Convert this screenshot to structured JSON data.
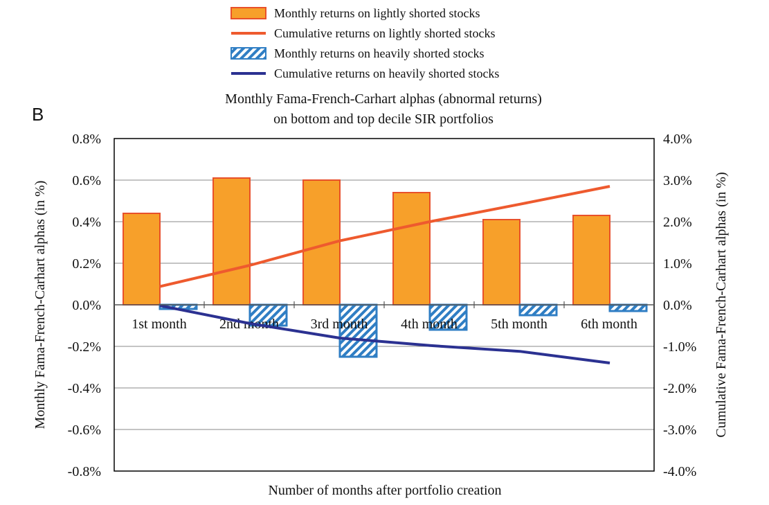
{
  "panel_label": "B",
  "chart_data": {
    "type": "bar",
    "title_lines": [
      "Monthly Fama-French-Carhart alphas (abnormal returns)",
      "on bottom and top decile SIR portfolios"
    ],
    "xlabel": "Number of months after portfolio creation",
    "ylabel_left": "Monthly  Fama-French-Carhart alphas (in %)",
    "ylabel_right": "Cumulative  Fama-French-Carhart alphas (in %)",
    "categories": [
      "1st month",
      "2nd month",
      "3rd month",
      "4th month",
      "5th month",
      "6th month"
    ],
    "ylim_left": [
      -0.8,
      0.8
    ],
    "ylim_right": [
      -4.0,
      4.0
    ],
    "yticks_left": [
      "0.8%",
      "0.6%",
      "0.4%",
      "0.2%",
      "0.0%",
      "-0.2%",
      "-0.4%",
      "-0.6%",
      "-0.8%"
    ],
    "yticks_right": [
      "4.0%",
      "3.0%",
      "2.0%",
      "1.0%",
      "0.0%",
      "-1.0%",
      "-2.0%",
      "-3.0%",
      "-4.0%"
    ],
    "grid": true,
    "legend_position": "top",
    "series": [
      {
        "name": "Monthly returns on lightly shorted stocks",
        "kind": "bar",
        "axis": "left",
        "style": "solid",
        "color": "#F7A02A",
        "edge": "#E8502A",
        "values": [
          0.44,
          0.61,
          0.6,
          0.54,
          0.41,
          0.43
        ]
      },
      {
        "name": "Cumulative returns on lightly shorted stocks",
        "kind": "line",
        "axis": "right",
        "color": "#EE5A2E",
        "values": [
          0.44,
          0.95,
          1.54,
          2.0,
          2.42,
          2.85
        ]
      },
      {
        "name": "Monthly returns on heavily shorted stocks",
        "kind": "bar",
        "axis": "left",
        "style": "hatched",
        "color": "#2F7EC4",
        "values": [
          -0.02,
          -0.1,
          -0.25,
          -0.12,
          -0.05,
          -0.03
        ]
      },
      {
        "name": "Cumulative returns on heavily shorted stocks",
        "kind": "line",
        "axis": "right",
        "color": "#2B3191",
        "values": [
          -0.02,
          -0.45,
          -0.8,
          -0.98,
          -1.12,
          -1.4
        ]
      }
    ]
  }
}
